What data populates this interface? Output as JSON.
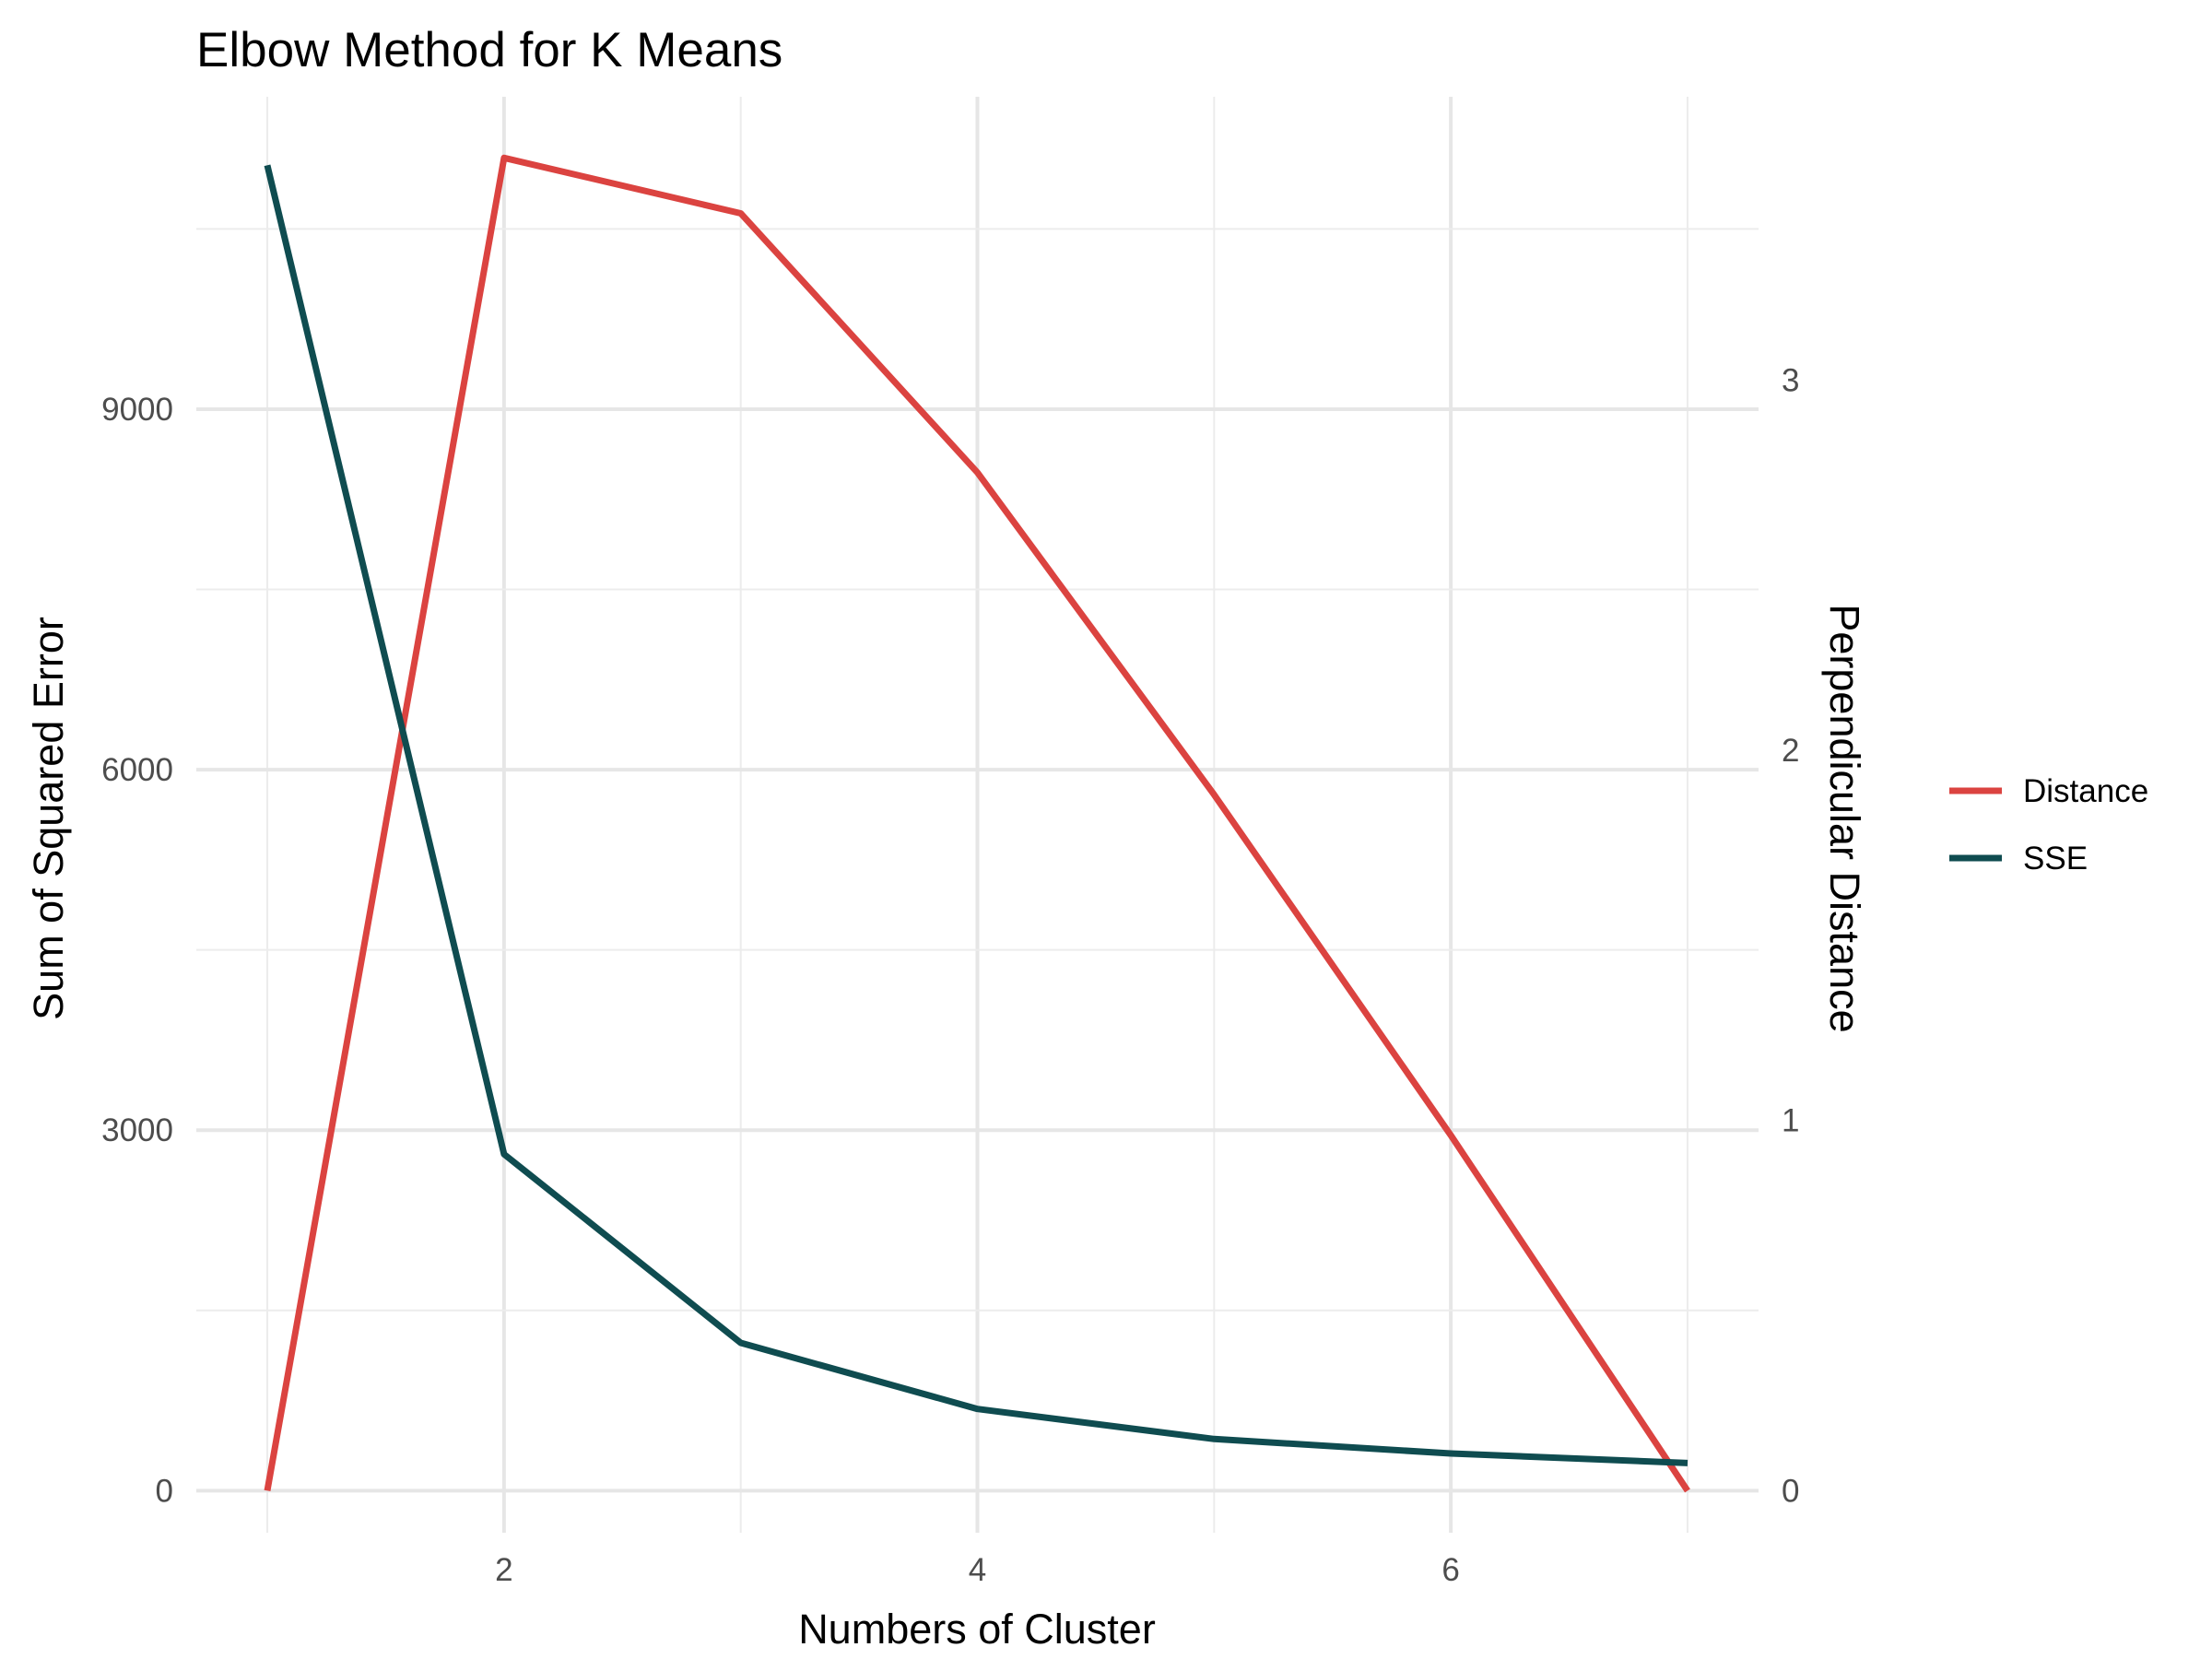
{
  "chart_data": {
    "type": "line",
    "title": "Elbow Method for K Means",
    "xlabel": "Numbers of Cluster",
    "ylabel": "Sum of Squared Error",
    "ylabel_right": "Perpendicular Distance",
    "x": [
      1,
      2,
      3,
      4,
      5,
      6,
      7
    ],
    "xlim": [
      0.7,
      7.3
    ],
    "ylim": [
      -350,
      11600
    ],
    "ylim_right": [
      -0.1135,
      3.765
    ],
    "x_ticks": [
      2,
      4,
      6
    ],
    "x_tick_labels": [
      "2",
      "4",
      "6"
    ],
    "y_ticks": [
      0,
      3000,
      6000,
      9000
    ],
    "y_tick_labels": [
      "0",
      "3000",
      "6000",
      "9000"
    ],
    "y_right_ticks": [
      0,
      1,
      2,
      3
    ],
    "y_right_tick_labels": [
      "0",
      "1",
      "2",
      "3"
    ],
    "grid": true,
    "legend_position": "right",
    "series": [
      {
        "name": "Distance",
        "axis": "right",
        "color": "#DB4340",
        "values": [
          0,
          3.6,
          3.45,
          2.75,
          1.88,
          0.96,
          0
        ]
      },
      {
        "name": "SSE",
        "axis": "left",
        "color": "#0F4C50",
        "values": [
          11030,
          2800,
          1230,
          680,
          430,
          310,
          230
        ]
      }
    ]
  }
}
